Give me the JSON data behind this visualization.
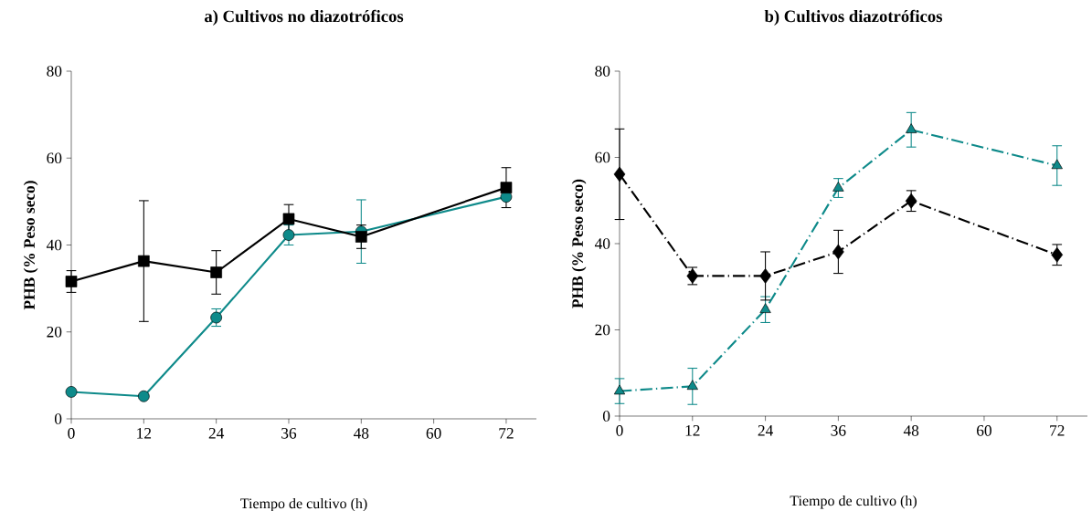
{
  "chart_data": [
    {
      "type": "line",
      "title": "a) Cultivos no diazotróficos",
      "xlabel": "Tiempo de cultivo (h)",
      "ylabel": "PHB (% Peso seco)",
      "x": [
        0,
        12,
        24,
        36,
        48,
        72
      ],
      "xlim": [
        0,
        77
      ],
      "xticks": [
        0,
        12,
        24,
        36,
        48,
        60,
        72
      ],
      "ylim": [
        0,
        80
      ],
      "yticks": [
        0,
        20,
        40,
        60,
        80
      ],
      "line_style": "solid",
      "series": [
        {
          "color": "#0e8a8a",
          "marker": "circle",
          "values": [
            6.2,
            5.2,
            23.3,
            42.3,
            43.1,
            51.1
          ],
          "errors": [
            null,
            null,
            2,
            2.3,
            7.3,
            null
          ]
        },
        {
          "color": "#000000",
          "marker": "square",
          "values": [
            31.6,
            36.3,
            33.7,
            46.0,
            41.9,
            53.2
          ],
          "errors": [
            2.5,
            13.9,
            5,
            3.3,
            2.7,
            4.6
          ]
        }
      ]
    },
    {
      "type": "line",
      "title": "b) Cultivos diazotróficos",
      "xlabel": "Tiempo de cultivo (h)",
      "ylabel": "PHB (% Peso seco)",
      "x": [
        0,
        12,
        24,
        36,
        48,
        72
      ],
      "xlim": [
        0,
        77
      ],
      "xticks": [
        0,
        12,
        24,
        36,
        48,
        60,
        72
      ],
      "ylim": [
        0,
        80
      ],
      "yticks": [
        0,
        20,
        40,
        60,
        80
      ],
      "line_style": "dashed",
      "series": [
        {
          "color": "#0e8a8a",
          "marker": "triangle",
          "values": [
            5.8,
            6.9,
            24.7,
            52.9,
            66.4,
            58.1
          ],
          "errors": [
            2.9,
            4.2,
            3,
            2.2,
            4,
            4.6
          ]
        },
        {
          "color": "#000000",
          "marker": "diamond",
          "values": [
            56.1,
            32.5,
            32.5,
            38.1,
            49.9,
            37.4
          ],
          "errors": [
            10.5,
            2,
            5.6,
            5,
            2.4,
            2.4
          ]
        }
      ]
    }
  ]
}
